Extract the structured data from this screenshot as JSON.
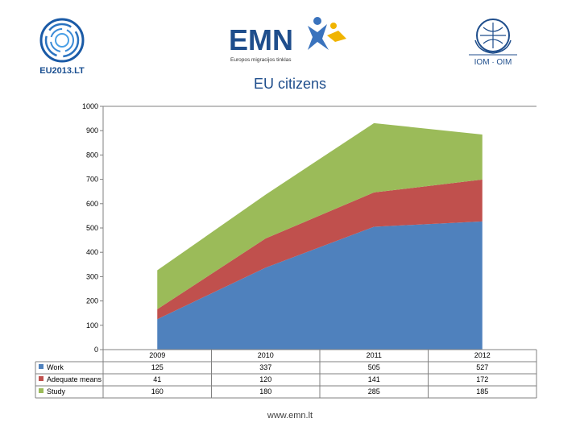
{
  "logos": {
    "eu_presidency": "EU2013.LT",
    "emn_mark": "EMN",
    "emn_subtitle": "Europos migracijos tinklas",
    "iom_mark": "IOM · OIM"
  },
  "footer": {
    "url": "www.emn.lt"
  },
  "colors": {
    "work": "#4f81bd",
    "adequate_means": "#c0504d",
    "study": "#9bbb59",
    "title": "#1f4e8c"
  },
  "chart_data": {
    "type": "area",
    "stacked": true,
    "title": "EU citizens",
    "categories": [
      "2009",
      "2010",
      "2011",
      "2012"
    ],
    "series": [
      {
        "name": "Work",
        "values": [
          125,
          337,
          505,
          527
        ]
      },
      {
        "name": "Adequate means",
        "values": [
          41,
          120,
          141,
          172
        ]
      },
      {
        "name": "Study",
        "values": [
          160,
          180,
          285,
          185
        ]
      }
    ],
    "yticks": [
      0,
      100,
      200,
      300,
      400,
      500,
      600,
      700,
      800,
      900,
      1000
    ],
    "ylim": [
      0,
      1000
    ],
    "grid": false,
    "data_table": true
  }
}
